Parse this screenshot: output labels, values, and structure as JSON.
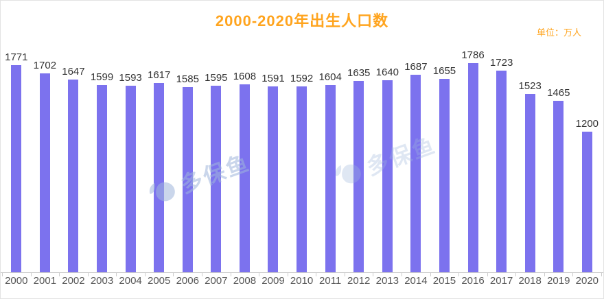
{
  "unit_label": "单位：万人",
  "watermark": {
    "text": "多保鱼"
  },
  "colors": {
    "title": "#FFA41E",
    "unit": "#FFA41E",
    "bar": "#7C72EE",
    "value_label": "#333333",
    "axis": "#CCCCCC",
    "x_tick_label": "#555555",
    "watermark": "#9FB6DC"
  },
  "chart_data": {
    "type": "bar",
    "title": "2000-2020年出生人口数",
    "unit": "万人",
    "categories": [
      "2000",
      "2001",
      "2002",
      "2003",
      "2004",
      "2005",
      "2006",
      "2007",
      "2008",
      "2009",
      "2010",
      "2011",
      "2012",
      "2013",
      "2014",
      "2015",
      "2016",
      "2017",
      "2018",
      "2019",
      "2020"
    ],
    "values": [
      1771,
      1702,
      1647,
      1599,
      1593,
      1617,
      1585,
      1595,
      1608,
      1591,
      1592,
      1604,
      1635,
      1640,
      1687,
      1655,
      1786,
      1723,
      1523,
      1465,
      1200
    ],
    "xlabel": "",
    "ylabel": "",
    "ylim": [
      0,
      2000
    ],
    "grid": false,
    "legend": "none",
    "data_labels": "above-bars",
    "bar_color": "#7C72EE"
  }
}
